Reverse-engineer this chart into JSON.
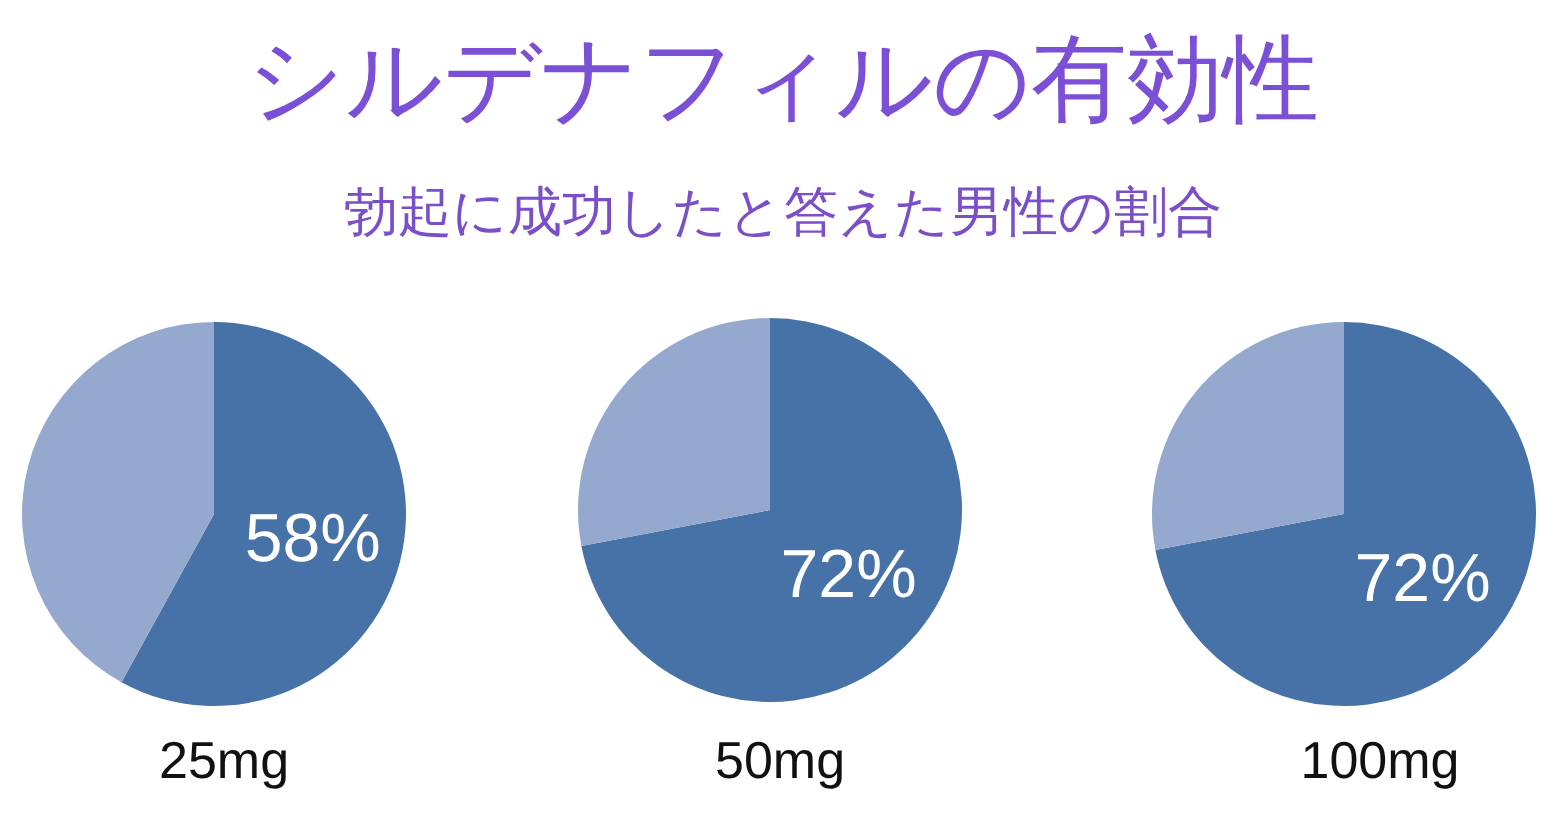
{
  "chart_data": [
    {
      "type": "other",
      "title": "シルデナフィルの有効性",
      "subtitle": "勃起に成功したと答えた男性の割合"
    },
    {
      "type": "pie",
      "xlabel": "25mg",
      "categories": [
        null,
        null
      ],
      "values": [
        58,
        42
      ],
      "colors": [
        "#4672a7",
        "#95a9cf"
      ],
      "value_labels": [
        "58%",
        null
      ]
    },
    {
      "type": "pie",
      "xlabel": "50mg",
      "categories": [
        null,
        null
      ],
      "values": [
        72,
        28
      ],
      "colors": [
        "#4672a7",
        "#95a9cf"
      ],
      "value_labels": [
        "72%",
        null
      ]
    },
    {
      "type": "pie",
      "xlabel": "100mg",
      "categories": [
        null,
        null
      ],
      "values": [
        72,
        28
      ],
      "colors": [
        "#4672a7",
        "#95a9cf"
      ],
      "value_labels": [
        "72%",
        null
      ]
    }
  ]
}
